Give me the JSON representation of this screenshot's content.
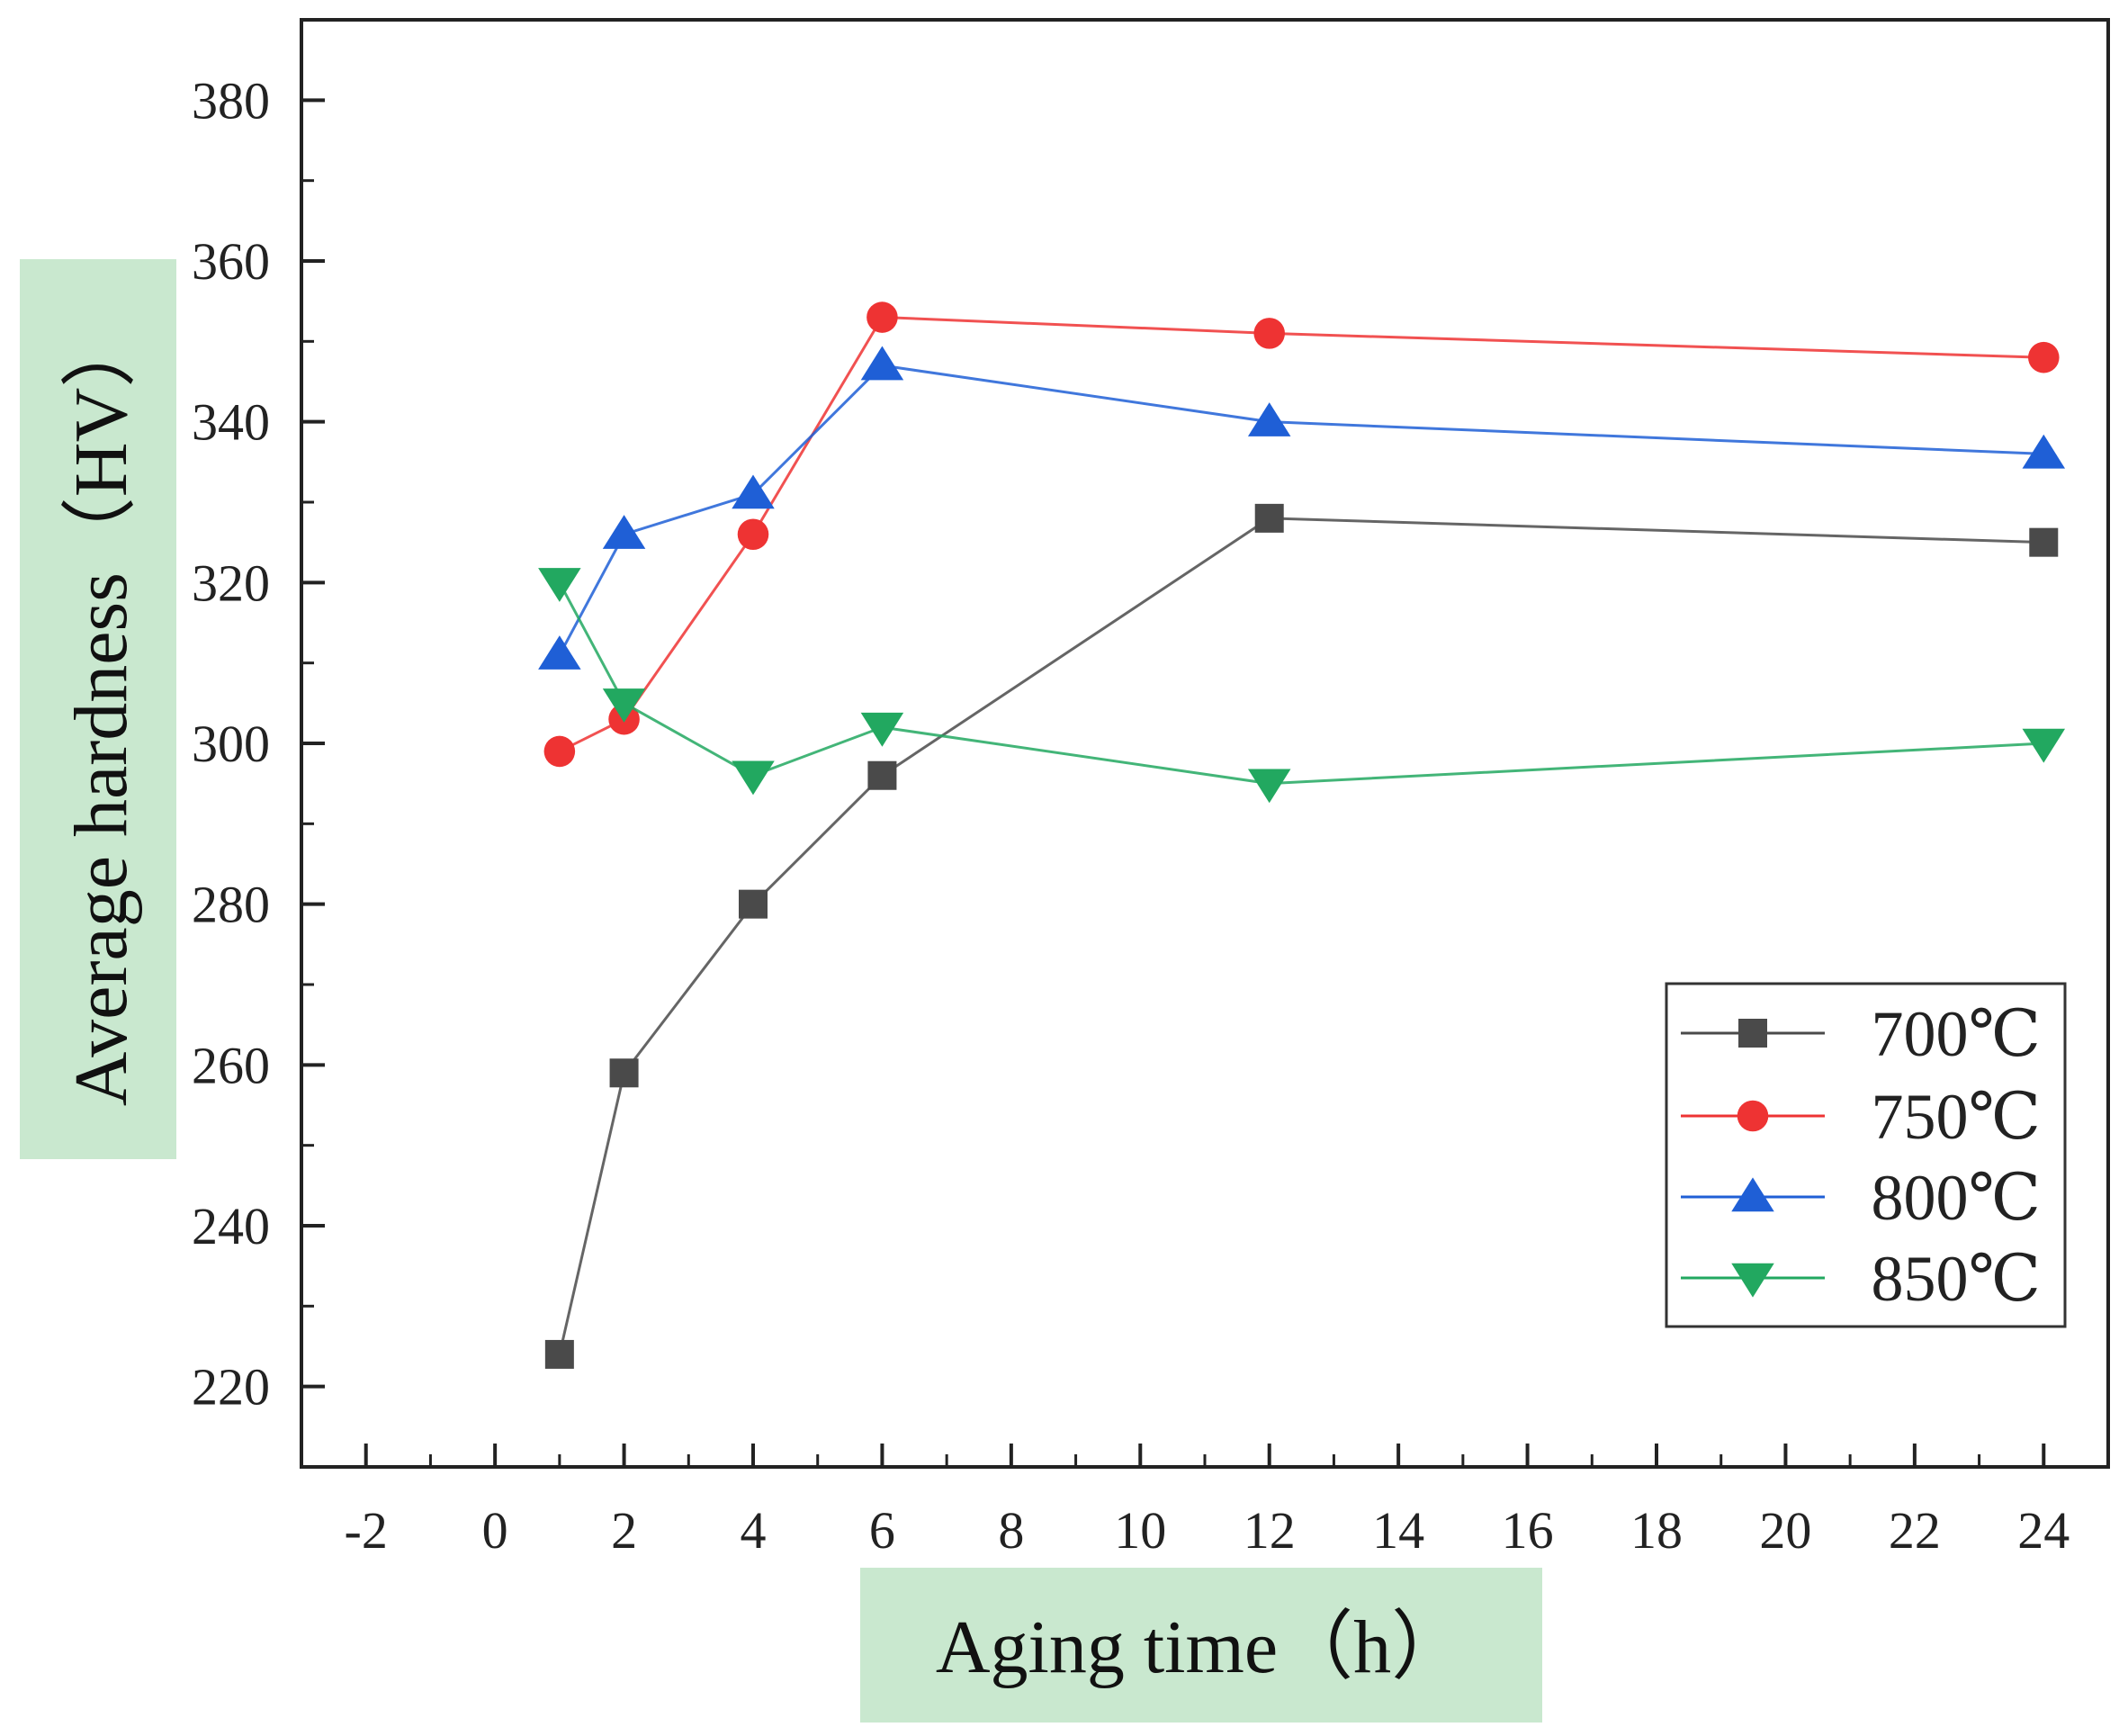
{
  "chart_data": {
    "type": "line",
    "title": "",
    "xlabel": "Aging time（h）",
    "ylabel": "Average hardness（HV）",
    "xlim": [
      -3,
      25
    ],
    "ylim": [
      210,
      390
    ],
    "xticks": [
      -2,
      0,
      2,
      4,
      6,
      8,
      10,
      12,
      14,
      16,
      18,
      20,
      22,
      24
    ],
    "xtick_labels": [
      "-2",
      "0",
      "2",
      "4",
      "6",
      "8",
      "10",
      "12",
      "14",
      "16",
      "18",
      "20",
      "22",
      "24"
    ],
    "yticks": [
      220,
      240,
      260,
      280,
      300,
      320,
      340,
      360,
      380
    ],
    "ytick_labels": [
      "220",
      "240",
      "260",
      "280",
      "300",
      "320",
      "340",
      "360",
      "380"
    ],
    "x": [
      1,
      2,
      4,
      6,
      12,
      24
    ],
    "series": [
      {
        "name": "700℃",
        "marker": "square",
        "color": "#4a4a4a",
        "values": [
          224,
          259,
          280,
          296,
          328,
          325
        ]
      },
      {
        "name": "750℃",
        "marker": "circle",
        "color": "#ee3333",
        "values": [
          299,
          303,
          326,
          353,
          351,
          348
        ]
      },
      {
        "name": "800℃",
        "marker": "triangle-up",
        "color": "#1f5fd6",
        "values": [
          311,
          326,
          331,
          347,
          340,
          336
        ]
      },
      {
        "name": "850℃",
        "marker": "triangle-down",
        "color": "#22a860",
        "values": [
          320,
          305,
          296,
          302,
          295,
          300
        ]
      }
    ],
    "legend_position": "bottom-right",
    "grid": false
  },
  "style": {
    "axis_color": "#222222",
    "label_highlight": "#c9e8cf"
  }
}
